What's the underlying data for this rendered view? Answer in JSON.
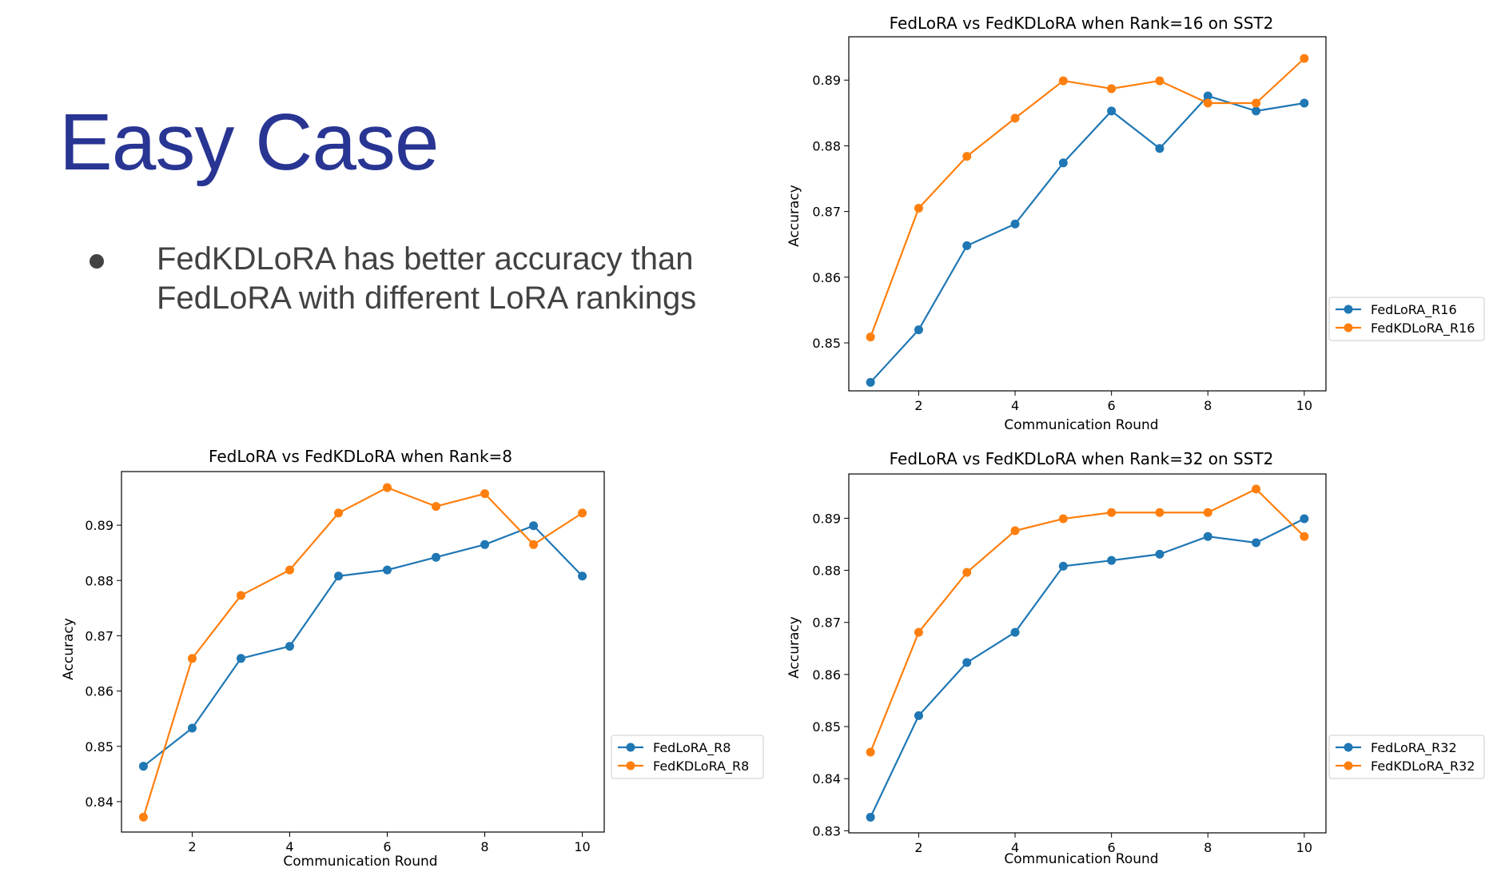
{
  "slide": {
    "title": "Easy Case",
    "bullet": {
      "lines": [
        "FedKDLoRA has better accuracy than",
        "FedLoRA with different LoRA rankings"
      ]
    }
  },
  "colors": {
    "title": "#283593",
    "text": "#424242",
    "series_blue": "#1f77b4",
    "series_orange": "#ff7f0e"
  },
  "chart_data": [
    {
      "type": "line",
      "title": "FedLoRA vs FedKDLoRA when Rank=16 on SST2",
      "xlabel": "Communication Round",
      "ylabel": "Accuracy",
      "xlim": [
        0.55,
        10.45
      ],
      "ylim": [
        0.8427,
        0.8966
      ],
      "xticks": [
        2,
        4,
        6,
        8,
        10
      ],
      "yticks": [
        0.85,
        0.86,
        0.87,
        0.88,
        0.89
      ],
      "x": [
        1,
        2,
        3,
        4,
        5,
        6,
        7,
        8,
        9,
        10
      ],
      "legend": "outside-right",
      "series": [
        {
          "name": "FedLoRA_R16",
          "color": "#1f77b4",
          "values": [
            0.844,
            0.852,
            0.8648,
            0.8681,
            0.8774,
            0.8853,
            0.8796,
            0.8876,
            0.8853,
            0.8865
          ]
        },
        {
          "name": "FedKDLoRA_R16",
          "color": "#ff7f0e",
          "values": [
            0.8509,
            0.8705,
            0.8784,
            0.8842,
            0.8899,
            0.8887,
            0.8899,
            0.8865,
            0.8865,
            0.8933
          ]
        }
      ]
    },
    {
      "type": "line",
      "title": "FedLoRA vs FedKDLoRA when Rank=8",
      "xlabel": "Communication Round",
      "ylabel": "Accuracy",
      "xlim": [
        0.55,
        10.45
      ],
      "ylim": [
        0.8345,
        0.8997
      ],
      "xticks": [
        2,
        4,
        6,
        8,
        10
      ],
      "yticks": [
        0.84,
        0.85,
        0.86,
        0.87,
        0.88,
        0.89
      ],
      "x": [
        1,
        2,
        3,
        4,
        5,
        6,
        7,
        8,
        9,
        10
      ],
      "legend": "outside-right",
      "series": [
        {
          "name": "FedLoRA_R8",
          "color": "#1f77b4",
          "values": [
            0.8464,
            0.8533,
            0.8659,
            0.8681,
            0.8808,
            0.8819,
            0.8842,
            0.8865,
            0.8899,
            0.8808
          ]
        },
        {
          "name": "FedKDLoRA_R8",
          "color": "#ff7f0e",
          "values": [
            0.8372,
            0.8659,
            0.8773,
            0.8819,
            0.8922,
            0.8968,
            0.8934,
            0.8957,
            0.8865,
            0.8922
          ]
        }
      ]
    },
    {
      "type": "line",
      "title": "FedLoRA vs FedKDLoRA when Rank=32 on SST2",
      "xlabel": "Communication Round",
      "ylabel": "Accuracy",
      "xlim": [
        0.55,
        10.45
      ],
      "ylim": [
        0.8296,
        0.8985
      ],
      "xticks": [
        2,
        4,
        6,
        8,
        10
      ],
      "yticks": [
        0.83,
        0.84,
        0.85,
        0.86,
        0.87,
        0.88,
        0.89
      ],
      "x": [
        1,
        2,
        3,
        4,
        5,
        6,
        7,
        8,
        9,
        10
      ],
      "legend": "outside-right",
      "series": [
        {
          "name": "FedLoRA_R32",
          "color": "#1f77b4",
          "values": [
            0.8326,
            0.8521,
            0.8623,
            0.8681,
            0.8808,
            0.8819,
            0.8831,
            0.8865,
            0.8853,
            0.8899
          ]
        },
        {
          "name": "FedKDLoRA_R32",
          "color": "#ff7f0e",
          "values": [
            0.8451,
            0.8681,
            0.8796,
            0.8876,
            0.8899,
            0.8911,
            0.8911,
            0.8911,
            0.8956,
            0.8865
          ]
        }
      ]
    }
  ]
}
